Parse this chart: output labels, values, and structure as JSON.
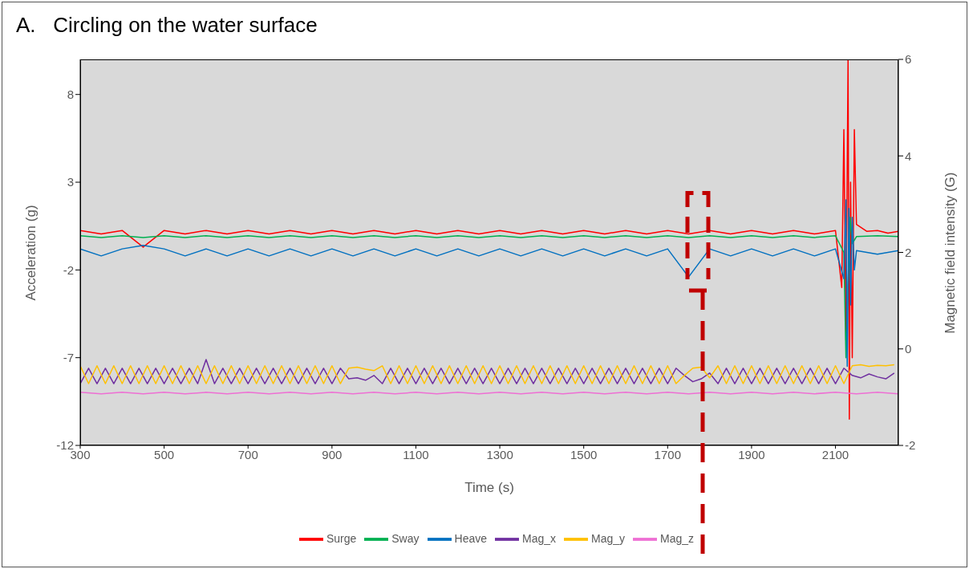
{
  "chart_data": {
    "type": "line",
    "title": "A.   Circling on the water surface",
    "xlabel": "Time (s)",
    "ylabel": "Acceleration (g)",
    "y2label": "Magnetic field intensity (G)",
    "xlim": [
      300,
      2250
    ],
    "xticks": [
      300,
      500,
      700,
      900,
      1100,
      1300,
      1500,
      1700,
      1900,
      2100
    ],
    "ylim": [
      -12,
      10
    ],
    "yticks": [
      -12,
      -7,
      -2,
      3,
      8
    ],
    "y2lim": [
      -2,
      6
    ],
    "y2ticks": [
      -2,
      0,
      2,
      4,
      6
    ],
    "legend": "bottom",
    "marker": "none",
    "line_style": "solid",
    "series": [
      {
        "name": "Surge",
        "color": "#ff0000",
        "x": [
          300,
          350,
          400,
          450,
          500,
          550,
          600,
          650,
          700,
          750,
          800,
          850,
          900,
          950,
          1000,
          1050,
          1100,
          1150,
          1200,
          1250,
          1300,
          1350,
          1400,
          1450,
          1500,
          1550,
          1600,
          1650,
          1700,
          1750,
          1800,
          1850,
          1900,
          1950,
          2000,
          2050,
          2100,
          2115,
          2120,
          2125,
          2130,
          2133,
          2136,
          2140,
          2145,
          2150,
          2175,
          2200,
          2225,
          2250
        ],
        "values": [
          0.25,
          0.05,
          0.25,
          -0.7,
          0.25,
          0.05,
          0.25,
          0.05,
          0.25,
          0.05,
          0.25,
          0.05,
          0.25,
          0.05,
          0.25,
          0.05,
          0.25,
          0.05,
          0.25,
          0.05,
          0.25,
          0.05,
          0.25,
          0.05,
          0.25,
          0.05,
          0.25,
          0.05,
          0.25,
          0.05,
          0.25,
          0.05,
          0.25,
          0.05,
          0.25,
          0.05,
          0.25,
          -3,
          6,
          -6,
          10,
          -10.5,
          3,
          -7,
          6,
          0.6,
          0.2,
          0.25,
          0.1,
          0.2
        ]
      },
      {
        "name": "Sway",
        "color": "#00b050",
        "x": [
          300,
          350,
          400,
          450,
          500,
          550,
          600,
          650,
          700,
          750,
          800,
          850,
          900,
          950,
          1000,
          1050,
          1100,
          1150,
          1200,
          1250,
          1300,
          1350,
          1400,
          1450,
          1500,
          1550,
          1600,
          1650,
          1700,
          1750,
          1800,
          1850,
          1900,
          1950,
          2000,
          2050,
          2100,
          2120,
          2125,
          2130,
          2135,
          2140,
          2150,
          2200,
          2250
        ],
        "values": [
          -0.05,
          -0.15,
          -0.05,
          -0.15,
          -0.05,
          -0.15,
          -0.05,
          -0.15,
          -0.05,
          -0.15,
          -0.05,
          -0.15,
          -0.05,
          -0.15,
          -0.05,
          -0.15,
          -0.05,
          -0.15,
          -0.05,
          -0.15,
          -0.05,
          -0.15,
          -0.05,
          -0.15,
          -0.05,
          -0.15,
          -0.05,
          -0.15,
          -0.05,
          -0.15,
          -0.05,
          -0.15,
          -0.05,
          -0.15,
          -0.05,
          -0.15,
          -0.05,
          -1,
          -7,
          -3,
          1,
          -0.5,
          -0.1,
          -0.05,
          -0.1
        ]
      },
      {
        "name": "Heave",
        "color": "#0070c0",
        "x": [
          300,
          350,
          400,
          450,
          500,
          550,
          600,
          650,
          700,
          750,
          800,
          850,
          900,
          950,
          1000,
          1050,
          1100,
          1150,
          1200,
          1250,
          1300,
          1350,
          1400,
          1450,
          1500,
          1550,
          1600,
          1650,
          1700,
          1750,
          1800,
          1850,
          1900,
          1950,
          2000,
          2050,
          2100,
          2120,
          2125,
          2128,
          2132,
          2136,
          2140,
          2145,
          2150,
          2200,
          2250
        ],
        "values": [
          -0.8,
          -1.2,
          -0.8,
          -0.6,
          -0.8,
          -1.2,
          -0.8,
          -1.2,
          -0.8,
          -1.2,
          -0.8,
          -1.2,
          -0.8,
          -1.2,
          -0.8,
          -1.2,
          -0.8,
          -1.2,
          -0.8,
          -1.2,
          -0.8,
          -1.2,
          -0.8,
          -1.2,
          -0.8,
          -1.2,
          -0.8,
          -1.2,
          -0.8,
          -2.4,
          -0.8,
          -1.2,
          -0.8,
          -1.2,
          -0.8,
          -1.2,
          -0.8,
          -2.5,
          2,
          -7.5,
          1.5,
          -4,
          1,
          -2,
          -0.9,
          -1.1,
          -0.9
        ]
      },
      {
        "name": "Mag_x",
        "color": "#7030a0",
        "axis": "y2",
        "x": [
          300,
          320,
          340,
          360,
          380,
          400,
          420,
          440,
          460,
          480,
          500,
          520,
          540,
          560,
          580,
          600,
          620,
          640,
          660,
          680,
          700,
          720,
          740,
          760,
          780,
          800,
          820,
          840,
          860,
          880,
          900,
          920,
          940,
          960,
          980,
          1000,
          1020,
          1040,
          1060,
          1080,
          1100,
          1120,
          1140,
          1160,
          1180,
          1200,
          1220,
          1240,
          1260,
          1280,
          1300,
          1320,
          1340,
          1360,
          1380,
          1400,
          1420,
          1440,
          1460,
          1480,
          1500,
          1520,
          1540,
          1560,
          1580,
          1600,
          1620,
          1640,
          1660,
          1680,
          1700,
          1720,
          1740,
          1760,
          1780,
          1800,
          1820,
          1840,
          1860,
          1880,
          1900,
          1920,
          1940,
          1960,
          1980,
          2000,
          2020,
          2040,
          2060,
          2080,
          2100,
          2120,
          2140,
          2160,
          2180,
          2200,
          2220,
          2240
        ],
        "values": [
          -0.72,
          -0.4,
          -0.72,
          -0.4,
          -0.72,
          -0.4,
          -0.72,
          -0.4,
          -0.72,
          -0.4,
          -0.72,
          -0.4,
          -0.72,
          -0.4,
          -0.72,
          -0.22,
          -0.72,
          -0.4,
          -0.72,
          -0.4,
          -0.72,
          -0.4,
          -0.72,
          -0.4,
          -0.72,
          -0.4,
          -0.72,
          -0.4,
          -0.72,
          -0.4,
          -0.72,
          -0.4,
          -0.62,
          -0.6,
          -0.65,
          -0.55,
          -0.72,
          -0.4,
          -0.72,
          -0.4,
          -0.72,
          -0.4,
          -0.72,
          -0.4,
          -0.72,
          -0.4,
          -0.72,
          -0.4,
          -0.72,
          -0.4,
          -0.72,
          -0.4,
          -0.72,
          -0.4,
          -0.72,
          -0.4,
          -0.72,
          -0.4,
          -0.72,
          -0.4,
          -0.72,
          -0.4,
          -0.72,
          -0.4,
          -0.72,
          -0.4,
          -0.72,
          -0.4,
          -0.72,
          -0.4,
          -0.72,
          -0.4,
          -0.55,
          -0.68,
          -0.62,
          -0.5,
          -0.72,
          -0.4,
          -0.72,
          -0.4,
          -0.72,
          -0.4,
          -0.72,
          -0.4,
          -0.72,
          -0.4,
          -0.72,
          -0.4,
          -0.72,
          -0.4,
          -0.72,
          -0.4,
          -0.55,
          -0.6,
          -0.52,
          -0.58,
          -0.62,
          -0.5
        ]
      },
      {
        "name": "Mag_y",
        "color": "#ffc000",
        "axis": "y2",
        "x": [
          300,
          320,
          340,
          360,
          380,
          400,
          420,
          440,
          460,
          480,
          500,
          520,
          540,
          560,
          580,
          600,
          620,
          640,
          660,
          680,
          700,
          720,
          740,
          760,
          780,
          800,
          820,
          840,
          860,
          880,
          900,
          920,
          940,
          960,
          980,
          1000,
          1020,
          1040,
          1060,
          1080,
          1100,
          1120,
          1140,
          1160,
          1180,
          1200,
          1220,
          1240,
          1260,
          1280,
          1300,
          1320,
          1340,
          1360,
          1380,
          1400,
          1420,
          1440,
          1460,
          1480,
          1500,
          1520,
          1540,
          1560,
          1580,
          1600,
          1620,
          1640,
          1660,
          1680,
          1700,
          1720,
          1740,
          1760,
          1780,
          1800,
          1820,
          1840,
          1860,
          1880,
          1900,
          1920,
          1940,
          1960,
          1980,
          2000,
          2020,
          2040,
          2060,
          2080,
          2100,
          2120,
          2140,
          2160,
          2180,
          2200,
          2220,
          2240
        ],
        "values": [
          -0.35,
          -0.72,
          -0.35,
          -0.72,
          -0.35,
          -0.72,
          -0.35,
          -0.72,
          -0.35,
          -0.72,
          -0.35,
          -0.72,
          -0.35,
          -0.72,
          -0.35,
          -0.72,
          -0.35,
          -0.72,
          -0.35,
          -0.72,
          -0.35,
          -0.72,
          -0.35,
          -0.72,
          -0.35,
          -0.72,
          -0.35,
          -0.72,
          -0.35,
          -0.72,
          -0.35,
          -0.72,
          -0.4,
          -0.38,
          -0.42,
          -0.45,
          -0.35,
          -0.72,
          -0.35,
          -0.72,
          -0.35,
          -0.72,
          -0.35,
          -0.72,
          -0.35,
          -0.72,
          -0.35,
          -0.72,
          -0.35,
          -0.72,
          -0.35,
          -0.72,
          -0.35,
          -0.72,
          -0.35,
          -0.72,
          -0.35,
          -0.72,
          -0.35,
          -0.72,
          -0.35,
          -0.72,
          -0.35,
          -0.72,
          -0.35,
          -0.72,
          -0.35,
          -0.72,
          -0.35,
          -0.72,
          -0.35,
          -0.72,
          -0.55,
          -0.4,
          -0.38,
          -0.6,
          -0.35,
          -0.72,
          -0.35,
          -0.72,
          -0.35,
          -0.72,
          -0.35,
          -0.72,
          -0.35,
          -0.72,
          -0.35,
          -0.72,
          -0.35,
          -0.72,
          -0.35,
          -0.72,
          -0.35,
          -0.33,
          -0.36,
          -0.34,
          -0.35,
          -0.33
        ]
      },
      {
        "name": "Mag_z",
        "color": "#ee6fd4",
        "axis": "y2",
        "x": [
          300,
          350,
          400,
          450,
          500,
          550,
          600,
          650,
          700,
          750,
          800,
          850,
          900,
          950,
          1000,
          1050,
          1100,
          1150,
          1200,
          1250,
          1300,
          1350,
          1400,
          1450,
          1500,
          1550,
          1600,
          1650,
          1700,
          1750,
          1800,
          1850,
          1900,
          1950,
          2000,
          2050,
          2100,
          2150,
          2200,
          2250
        ],
        "values": [
          -0.9,
          -0.93,
          -0.9,
          -0.93,
          -0.9,
          -0.93,
          -0.9,
          -0.93,
          -0.9,
          -0.93,
          -0.9,
          -0.93,
          -0.9,
          -0.93,
          -0.9,
          -0.93,
          -0.9,
          -0.93,
          -0.9,
          -0.93,
          -0.9,
          -0.93,
          -0.9,
          -0.93,
          -0.9,
          -0.93,
          -0.9,
          -0.93,
          -0.9,
          -0.93,
          -0.9,
          -0.93,
          -0.9,
          -0.93,
          -0.9,
          -0.93,
          -0.9,
          -0.93,
          -0.9,
          -0.93
        ]
      }
    ]
  }
}
